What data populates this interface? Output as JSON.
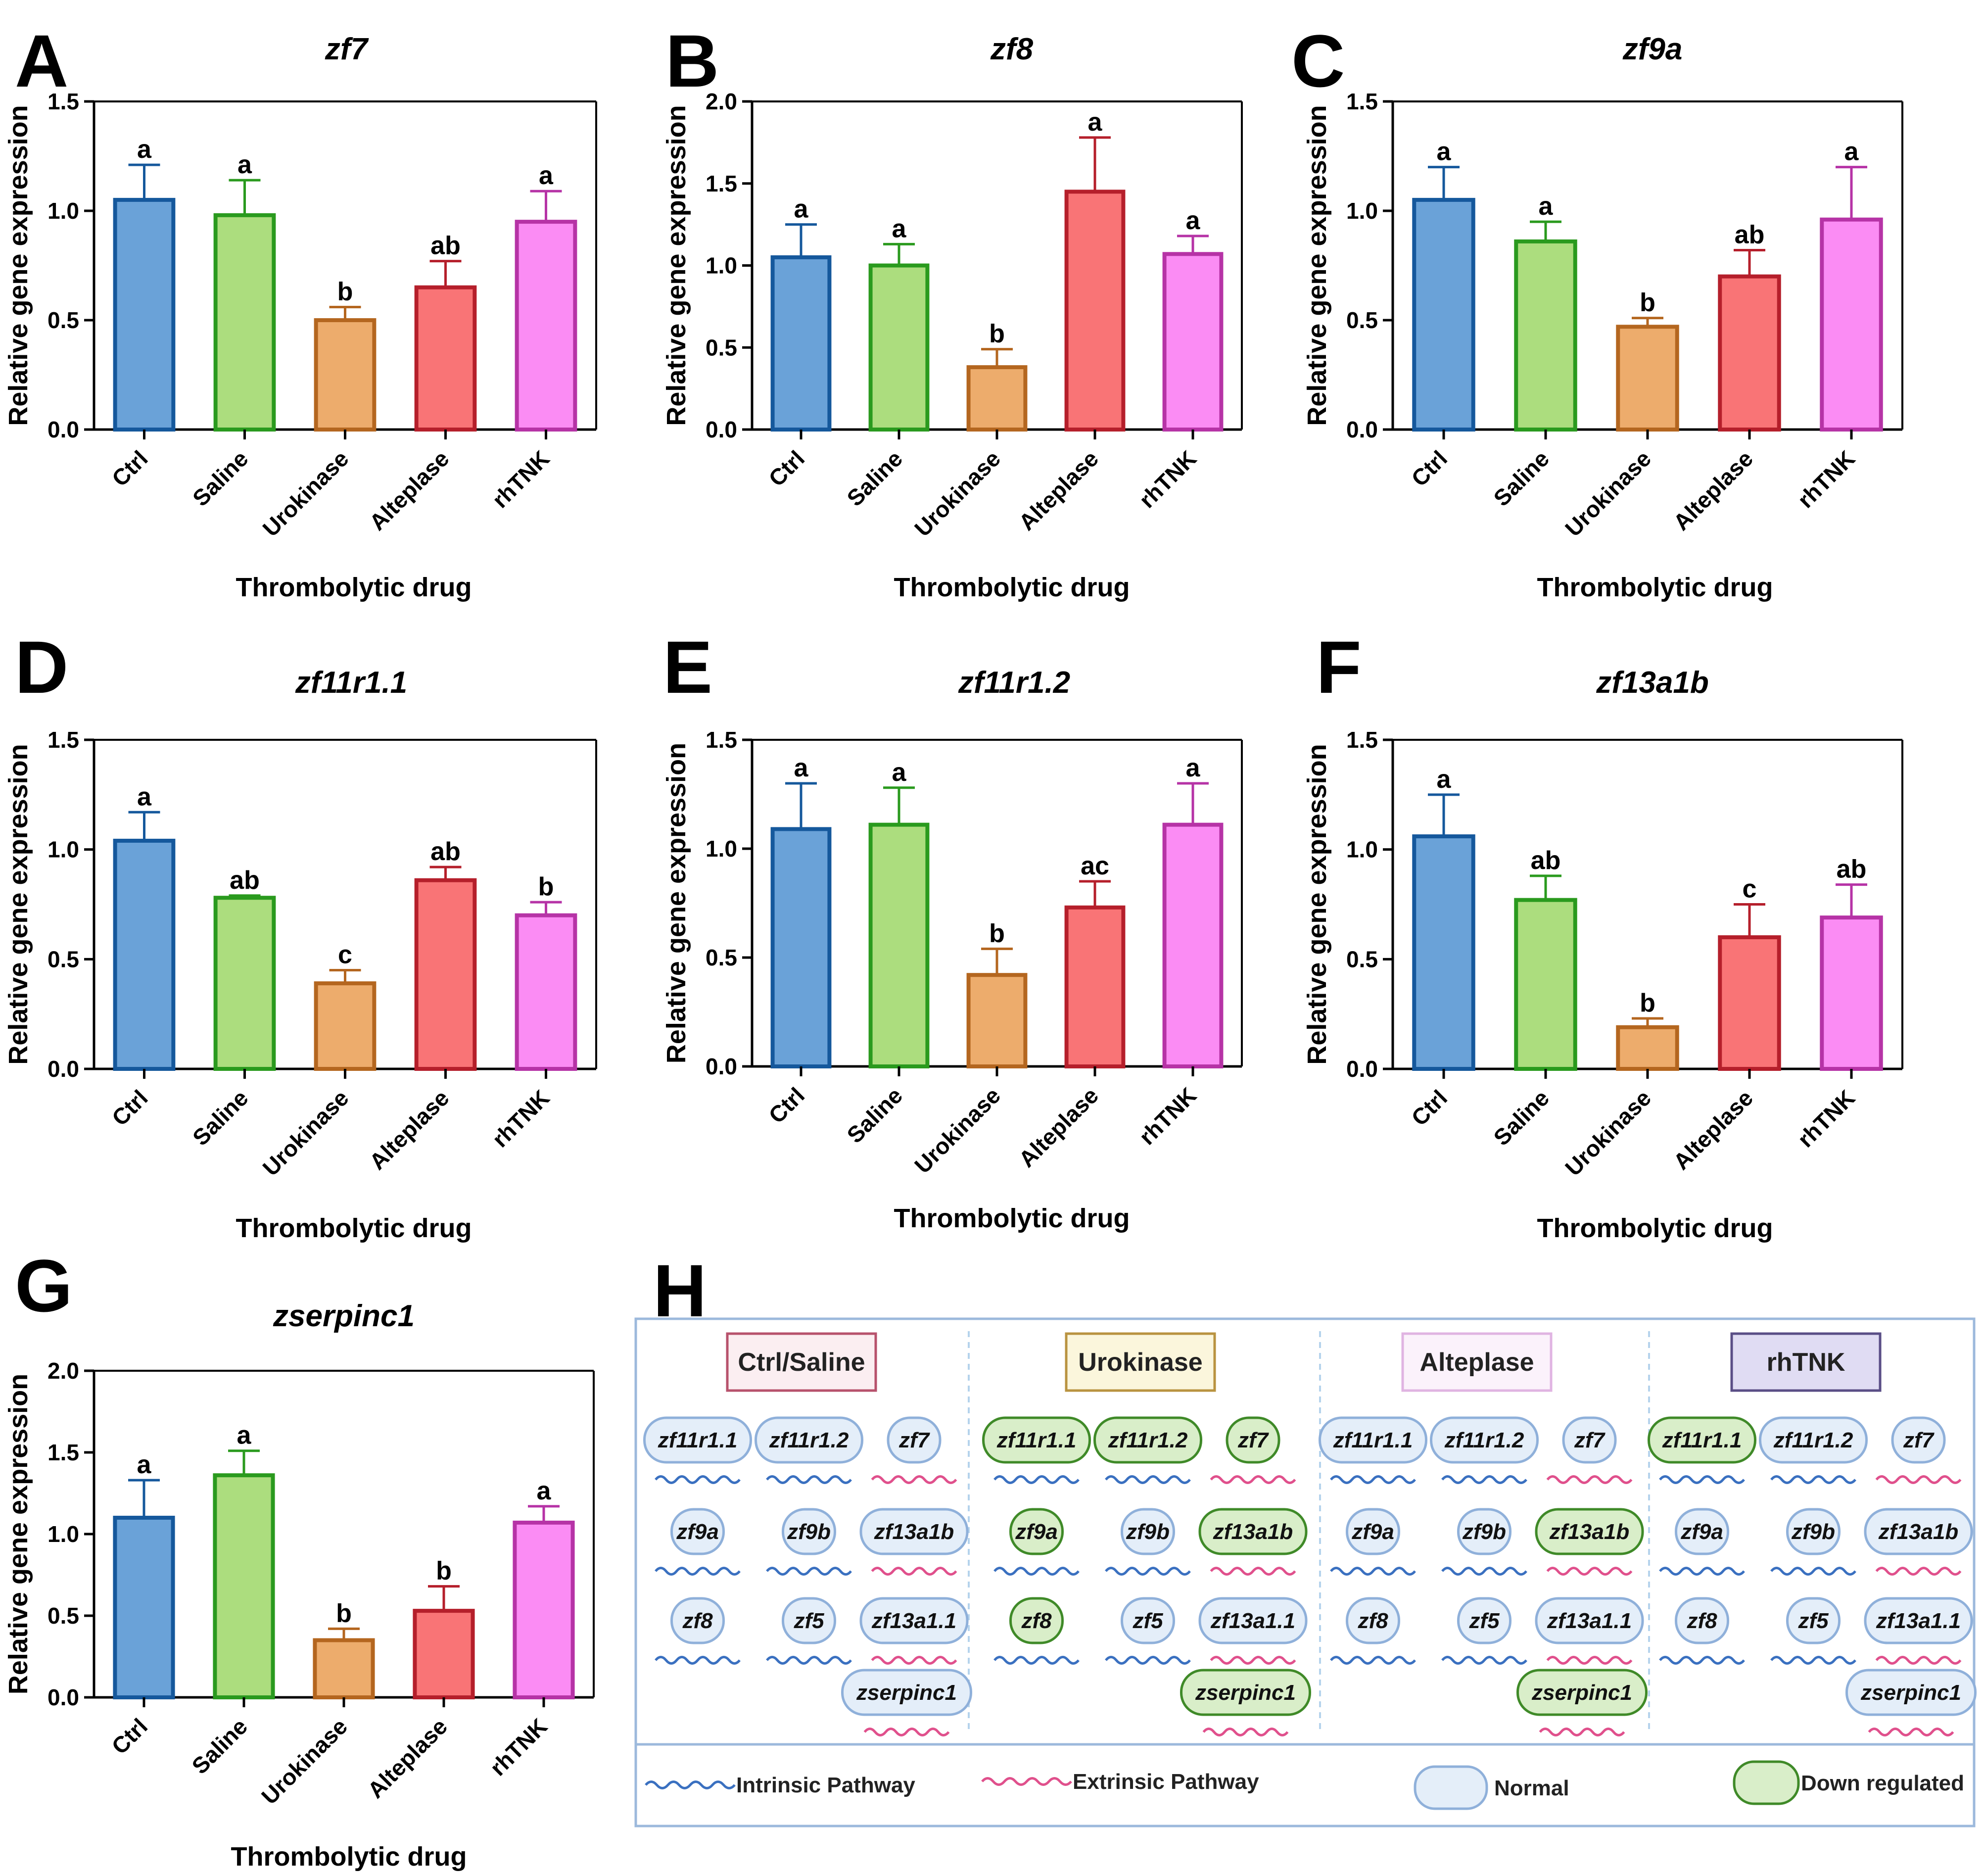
{
  "colors": {
    "fills": [
      "#6aa2d8",
      "#acdd7e",
      "#edac6c",
      "#f97476",
      "#fb8cf4"
    ],
    "strokes": [
      "#15589c",
      "#2a9a1e",
      "#b4661f",
      "#b51f2b",
      "#b633a6"
    ],
    "intrinsic": "#3a70c0",
    "extrinsic": "#e0508c",
    "normal_fill": "#e4eef9",
    "normal_stroke": "#8fb0da",
    "down_fill": "#d9eec9",
    "down_stroke": "#3f8a28",
    "panel_border": "#9cb9dc"
  },
  "chart_data": [
    {
      "panel": "A",
      "type": "bar",
      "title": "zf7",
      "xlabel": "Thrombolytic drug",
      "ylabel": "Relative gene expression",
      "categories": [
        "Ctrl",
        "Saline",
        "Urokinase",
        "Alteplase",
        "rhTNK"
      ],
      "ylim": [
        0,
        1.5
      ],
      "yticks": [
        "0.0",
        "0.5",
        "1.0",
        "1.5"
      ],
      "values": [
        1.05,
        0.98,
        0.5,
        0.65,
        0.95
      ],
      "errors": [
        0.16,
        0.16,
        0.06,
        0.12,
        0.14
      ],
      "letters": [
        "a",
        "a",
        "b",
        "ab",
        "a"
      ]
    },
    {
      "panel": "B",
      "type": "bar",
      "title": "zf8",
      "xlabel": "Thrombolytic drug",
      "ylabel": "Relative gene expression",
      "categories": [
        "Ctrl",
        "Saline",
        "Urokinase",
        "Alteplase",
        "rhTNK"
      ],
      "ylim": [
        0,
        2.0
      ],
      "yticks": [
        "0.0",
        "0.5",
        "1.0",
        "1.5",
        "2.0"
      ],
      "values": [
        1.05,
        1.0,
        0.38,
        1.45,
        1.07
      ],
      "errors": [
        0.2,
        0.13,
        0.11,
        0.33,
        0.11
      ],
      "letters": [
        "a",
        "a",
        "b",
        "a",
        "a"
      ]
    },
    {
      "panel": "C",
      "type": "bar",
      "title": "zf9a",
      "xlabel": "Thrombolytic drug",
      "ylabel": "Relative gene expression",
      "categories": [
        "Ctrl",
        "Saline",
        "Urokinase",
        "Alteplase",
        "rhTNK"
      ],
      "ylim": [
        0,
        1.5
      ],
      "yticks": [
        "0.0",
        "0.5",
        "1.0",
        "1.5"
      ],
      "values": [
        1.05,
        0.86,
        0.47,
        0.7,
        0.96
      ],
      "errors": [
        0.15,
        0.09,
        0.04,
        0.12,
        0.24
      ],
      "letters": [
        "a",
        "a",
        "b",
        "ab",
        "a"
      ]
    },
    {
      "panel": "D",
      "type": "bar",
      "title": "zf11r1.1",
      "xlabel": "Thrombolytic drug",
      "ylabel": "Relative gene expression",
      "categories": [
        "Ctrl",
        "Saline",
        "Urokinase",
        "Alteplase",
        "rhTNK"
      ],
      "ylim": [
        0,
        1.5
      ],
      "yticks": [
        "0.0",
        "0.5",
        "1.0",
        "1.5"
      ],
      "values": [
        1.04,
        0.78,
        0.39,
        0.86,
        0.7
      ],
      "errors": [
        0.13,
        0.01,
        0.06,
        0.06,
        0.06
      ],
      "letters": [
        "a",
        "ab",
        "c",
        "ab",
        "b"
      ]
    },
    {
      "panel": "E",
      "type": "bar",
      "title": "zf11r1.2",
      "xlabel": "Thrombolytic drug",
      "ylabel": "Relative gene expression",
      "categories": [
        "Ctrl",
        "Saline",
        "Urokinase",
        "Alteplase",
        "rhTNK"
      ],
      "ylim": [
        0,
        1.5
      ],
      "yticks": [
        "0.0",
        "0.5",
        "1.0",
        "1.5"
      ],
      "values": [
        1.09,
        1.11,
        0.42,
        0.73,
        1.11
      ],
      "errors": [
        0.21,
        0.17,
        0.12,
        0.12,
        0.19
      ],
      "letters": [
        "a",
        "a",
        "b",
        "ac",
        "a"
      ]
    },
    {
      "panel": "F",
      "type": "bar",
      "title": "zf13a1b",
      "xlabel": "Thrombolytic drug",
      "ylabel": "Relative gene expression",
      "categories": [
        "Ctrl",
        "Saline",
        "Urokinase",
        "Alteplase",
        "rhTNK"
      ],
      "ylim": [
        0,
        1.5
      ],
      "yticks": [
        "0.0",
        "0.5",
        "1.0",
        "1.5"
      ],
      "values": [
        1.06,
        0.77,
        0.19,
        0.6,
        0.69
      ],
      "errors": [
        0.19,
        0.11,
        0.04,
        0.15,
        0.15
      ],
      "letters": [
        "a",
        "ab",
        "b",
        "c",
        "ab"
      ]
    },
    {
      "panel": "G",
      "type": "bar",
      "title": "zserpinc1",
      "xlabel": "Thrombolytic drug",
      "ylabel": "Relative gene expression",
      "categories": [
        "Ctrl",
        "Saline",
        "Urokinase",
        "Alteplase",
        "rhTNK"
      ],
      "ylim": [
        0,
        2.0
      ],
      "yticks": [
        "0.0",
        "0.5",
        "1.0",
        "1.5",
        "2.0"
      ],
      "values": [
        1.1,
        1.36,
        0.35,
        0.53,
        1.07
      ],
      "errors": [
        0.23,
        0.15,
        0.07,
        0.15,
        0.1
      ],
      "letters": [
        "a",
        "a",
        "b",
        "b",
        "a"
      ]
    }
  ],
  "panel_h": {
    "label": "H",
    "groups": [
      {
        "title": "Ctrl/Saline",
        "title_fill": "#fbeef1",
        "title_stroke": "#b7526c",
        "rows": [
          [
            {
              "name": "zf11r1.1",
              "state": "normal",
              "path": "intrinsic"
            },
            {
              "name": "zf11r1.2",
              "state": "normal",
              "path": "intrinsic"
            },
            {
              "name": "zf7",
              "state": "normal",
              "path": "extrinsic"
            }
          ],
          [
            {
              "name": "zf9a",
              "state": "normal",
              "path": "intrinsic"
            },
            {
              "name": "zf9b",
              "state": "normal",
              "path": "intrinsic"
            },
            {
              "name": "zf13a1b",
              "state": "normal",
              "path": "extrinsic"
            }
          ],
          [
            {
              "name": "zf8",
              "state": "normal",
              "path": "intrinsic"
            },
            {
              "name": "zf5",
              "state": "normal",
              "path": "intrinsic"
            },
            {
              "name": "zf13a1.1",
              "state": "normal",
              "path": "extrinsic"
            }
          ],
          [
            null,
            null,
            {
              "name": "zserpinc1",
              "state": "normal",
              "path": "extrinsic"
            }
          ]
        ]
      },
      {
        "title": "Urokinase",
        "title_fill": "#fbf6dc",
        "title_stroke": "#b99340",
        "rows": [
          [
            {
              "name": "zf11r1.1",
              "state": "down",
              "path": "intrinsic"
            },
            {
              "name": "zf11r1.2",
              "state": "down",
              "path": "intrinsic"
            },
            {
              "name": "zf7",
              "state": "down",
              "path": "extrinsic"
            }
          ],
          [
            {
              "name": "zf9a",
              "state": "down",
              "path": "intrinsic"
            },
            {
              "name": "zf9b",
              "state": "normal",
              "path": "intrinsic"
            },
            {
              "name": "zf13a1b",
              "state": "down",
              "path": "extrinsic"
            }
          ],
          [
            {
              "name": "zf8",
              "state": "down",
              "path": "intrinsic"
            },
            {
              "name": "zf5",
              "state": "normal",
              "path": "intrinsic"
            },
            {
              "name": "zf13a1.1",
              "state": "normal",
              "path": "extrinsic"
            }
          ],
          [
            null,
            null,
            {
              "name": "zserpinc1",
              "state": "down",
              "path": "extrinsic"
            }
          ]
        ]
      },
      {
        "title": "Alteplase",
        "title_fill": "#fbf2fb",
        "title_stroke": "#e0b4e2",
        "rows": [
          [
            {
              "name": "zf11r1.1",
              "state": "normal",
              "path": "intrinsic"
            },
            {
              "name": "zf11r1.2",
              "state": "normal",
              "path": "intrinsic"
            },
            {
              "name": "zf7",
              "state": "normal",
              "path": "extrinsic"
            }
          ],
          [
            {
              "name": "zf9a",
              "state": "normal",
              "path": "intrinsic"
            },
            {
              "name": "zf9b",
              "state": "normal",
              "path": "intrinsic"
            },
            {
              "name": "zf13a1b",
              "state": "down",
              "path": "extrinsic"
            }
          ],
          [
            {
              "name": "zf8",
              "state": "normal",
              "path": "intrinsic"
            },
            {
              "name": "zf5",
              "state": "normal",
              "path": "intrinsic"
            },
            {
              "name": "zf13a1.1",
              "state": "normal",
              "path": "extrinsic"
            }
          ],
          [
            null,
            null,
            {
              "name": "zserpinc1",
              "state": "down",
              "path": "extrinsic"
            }
          ]
        ]
      },
      {
        "title": "rhTNK",
        "title_fill": "#e0dcf3",
        "title_stroke": "#5a4e86",
        "rows": [
          [
            {
              "name": "zf11r1.1",
              "state": "down",
              "path": "intrinsic"
            },
            {
              "name": "zf11r1.2",
              "state": "normal",
              "path": "intrinsic"
            },
            {
              "name": "zf7",
              "state": "normal",
              "path": "extrinsic"
            }
          ],
          [
            {
              "name": "zf9a",
              "state": "normal",
              "path": "intrinsic"
            },
            {
              "name": "zf9b",
              "state": "normal",
              "path": "intrinsic"
            },
            {
              "name": "zf13a1b",
              "state": "normal",
              "path": "extrinsic"
            }
          ],
          [
            {
              "name": "zf8",
              "state": "normal",
              "path": "intrinsic"
            },
            {
              "name": "zf5",
              "state": "normal",
              "path": "intrinsic"
            },
            {
              "name": "zf13a1.1",
              "state": "normal",
              "path": "extrinsic"
            }
          ],
          [
            null,
            null,
            {
              "name": "zserpinc1",
              "state": "normal",
              "path": "extrinsic"
            }
          ]
        ]
      }
    ],
    "legend": {
      "intrinsic": "Intrinsic Pathway",
      "extrinsic": "Extrinsic Pathway",
      "normal": "Normal",
      "down": "Down regulated"
    }
  }
}
